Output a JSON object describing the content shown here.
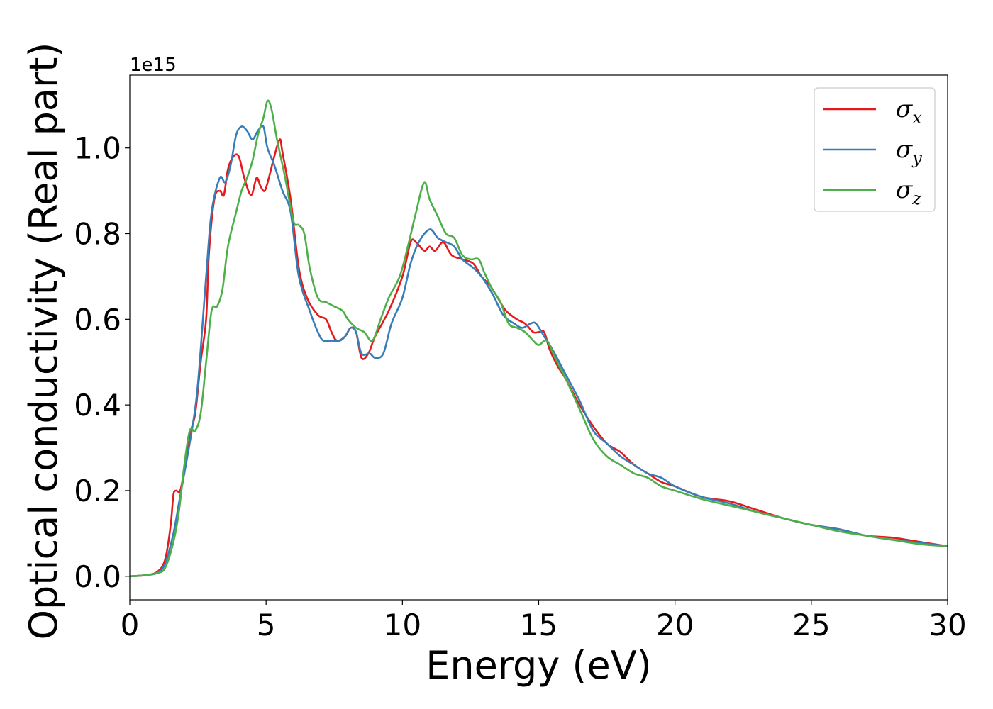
{
  "chart_data": {
    "type": "line",
    "title": "",
    "xlabel": "Energy (eV)",
    "ylabel": "Optical conductivity (Real part)",
    "y_offset_label": "1e15",
    "xlim": [
      0,
      30
    ],
    "ylim": [
      -0.055,
      1.17
    ],
    "xticks": [
      0,
      5,
      10,
      15,
      20,
      25,
      30
    ],
    "xtick_labels": [
      "0",
      "5",
      "10",
      "15",
      "20",
      "25",
      "30"
    ],
    "yticks": [
      0.0,
      0.2,
      0.4,
      0.6,
      0.8,
      1.0
    ],
    "ytick_labels": [
      "0.0",
      "0.2",
      "0.4",
      "0.6",
      "0.8",
      "1.0"
    ],
    "grid": false,
    "legend_position": "top-right",
    "series": [
      {
        "name": "σx",
        "symbol": "σ",
        "subscript": "x",
        "color": "#e41a1c",
        "points": [
          [
            0,
            0
          ],
          [
            0.5,
            0.002
          ],
          [
            1,
            0.01
          ],
          [
            1.3,
            0.04
          ],
          [
            1.5,
            0.12
          ],
          [
            1.6,
            0.19
          ],
          [
            1.7,
            0.2
          ],
          [
            1.85,
            0.2
          ],
          [
            2.0,
            0.25
          ],
          [
            2.2,
            0.33
          ],
          [
            2.4,
            0.38
          ],
          [
            2.6,
            0.5
          ],
          [
            2.8,
            0.6
          ],
          [
            2.9,
            0.75
          ],
          [
            3.1,
            0.88
          ],
          [
            3.3,
            0.9
          ],
          [
            3.45,
            0.89
          ],
          [
            3.6,
            0.95
          ],
          [
            3.8,
            0.98
          ],
          [
            4.0,
            0.98
          ],
          [
            4.2,
            0.93
          ],
          [
            4.45,
            0.89
          ],
          [
            4.65,
            0.93
          ],
          [
            4.8,
            0.91
          ],
          [
            4.95,
            0.9
          ],
          [
            5.1,
            0.93
          ],
          [
            5.3,
            0.98
          ],
          [
            5.5,
            1.02
          ],
          [
            5.6,
            0.99
          ],
          [
            5.9,
            0.88
          ],
          [
            6.2,
            0.72
          ],
          [
            6.5,
            0.65
          ],
          [
            6.9,
            0.61
          ],
          [
            7.2,
            0.6
          ],
          [
            7.4,
            0.57
          ],
          [
            7.6,
            0.55
          ],
          [
            7.9,
            0.56
          ],
          [
            8.1,
            0.58
          ],
          [
            8.3,
            0.57
          ],
          [
            8.5,
            0.51
          ],
          [
            8.75,
            0.52
          ],
          [
            9.0,
            0.56
          ],
          [
            9.5,
            0.62
          ],
          [
            10.0,
            0.7
          ],
          [
            10.3,
            0.78
          ],
          [
            10.5,
            0.78
          ],
          [
            10.8,
            0.76
          ],
          [
            11.0,
            0.77
          ],
          [
            11.2,
            0.76
          ],
          [
            11.5,
            0.78
          ],
          [
            11.8,
            0.75
          ],
          [
            12.2,
            0.74
          ],
          [
            12.6,
            0.73
          ],
          [
            12.9,
            0.7
          ],
          [
            13.2,
            0.68
          ],
          [
            13.5,
            0.65
          ],
          [
            13.8,
            0.62
          ],
          [
            14.2,
            0.6
          ],
          [
            14.5,
            0.59
          ],
          [
            14.8,
            0.57
          ],
          [
            15.0,
            0.57
          ],
          [
            15.2,
            0.57
          ],
          [
            15.4,
            0.53
          ],
          [
            15.7,
            0.49
          ],
          [
            16.0,
            0.46
          ],
          [
            16.5,
            0.4
          ],
          [
            17.0,
            0.35
          ],
          [
            17.5,
            0.31
          ],
          [
            18.0,
            0.29
          ],
          [
            18.5,
            0.26
          ],
          [
            19.0,
            0.24
          ],
          [
            19.5,
            0.22
          ],
          [
            20.0,
            0.21
          ],
          [
            21.0,
            0.185
          ],
          [
            22.0,
            0.175
          ],
          [
            23.0,
            0.155
          ],
          [
            24.0,
            0.135
          ],
          [
            25.0,
            0.12
          ],
          [
            26.0,
            0.11
          ],
          [
            27.0,
            0.095
          ],
          [
            28.0,
            0.09
          ],
          [
            29.0,
            0.08
          ],
          [
            30.0,
            0.07
          ]
        ]
      },
      {
        "name": "σy",
        "symbol": "σ",
        "subscript": "y",
        "color": "#377eb8",
        "points": [
          [
            0,
            0
          ],
          [
            0.5,
            0.002
          ],
          [
            1,
            0.008
          ],
          [
            1.3,
            0.03
          ],
          [
            1.6,
            0.1
          ],
          [
            1.8,
            0.17
          ],
          [
            2.0,
            0.24
          ],
          [
            2.3,
            0.35
          ],
          [
            2.5,
            0.45
          ],
          [
            2.8,
            0.7
          ],
          [
            3.0,
            0.85
          ],
          [
            3.3,
            0.93
          ],
          [
            3.5,
            0.92
          ],
          [
            3.7,
            0.96
          ],
          [
            3.9,
            1.03
          ],
          [
            4.1,
            1.05
          ],
          [
            4.3,
            1.04
          ],
          [
            4.5,
            1.02
          ],
          [
            4.7,
            1.04
          ],
          [
            4.9,
            1.05
          ],
          [
            5.05,
            1.0
          ],
          [
            5.3,
            0.96
          ],
          [
            5.6,
            0.9
          ],
          [
            5.9,
            0.85
          ],
          [
            6.2,
            0.7
          ],
          [
            6.6,
            0.62
          ],
          [
            6.9,
            0.57
          ],
          [
            7.1,
            0.55
          ],
          [
            7.4,
            0.55
          ],
          [
            7.7,
            0.55
          ],
          [
            7.9,
            0.56
          ],
          [
            8.1,
            0.58
          ],
          [
            8.3,
            0.57
          ],
          [
            8.5,
            0.52
          ],
          [
            8.8,
            0.52
          ],
          [
            9.0,
            0.51
          ],
          [
            9.3,
            0.52
          ],
          [
            9.6,
            0.59
          ],
          [
            10.0,
            0.65
          ],
          [
            10.3,
            0.73
          ],
          [
            10.6,
            0.78
          ],
          [
            11.0,
            0.81
          ],
          [
            11.3,
            0.79
          ],
          [
            11.6,
            0.78
          ],
          [
            11.9,
            0.77
          ],
          [
            12.2,
            0.74
          ],
          [
            12.6,
            0.72
          ],
          [
            12.9,
            0.7
          ],
          [
            13.3,
            0.66
          ],
          [
            13.7,
            0.61
          ],
          [
            14.1,
            0.59
          ],
          [
            14.4,
            0.58
          ],
          [
            14.7,
            0.59
          ],
          [
            14.9,
            0.59
          ],
          [
            15.2,
            0.56
          ],
          [
            15.5,
            0.53
          ],
          [
            16.0,
            0.47
          ],
          [
            16.5,
            0.41
          ],
          [
            17.0,
            0.34
          ],
          [
            17.5,
            0.31
          ],
          [
            18.0,
            0.28
          ],
          [
            18.5,
            0.26
          ],
          [
            19.0,
            0.24
          ],
          [
            19.5,
            0.23
          ],
          [
            20.0,
            0.21
          ],
          [
            21.0,
            0.185
          ],
          [
            22.0,
            0.17
          ],
          [
            23.0,
            0.15
          ],
          [
            24.0,
            0.135
          ],
          [
            25.0,
            0.12
          ],
          [
            26.0,
            0.11
          ],
          [
            27.0,
            0.095
          ],
          [
            28.0,
            0.085
          ],
          [
            29.0,
            0.078
          ],
          [
            30.0,
            0.07
          ]
        ]
      },
      {
        "name": "σz",
        "symbol": "σ",
        "subscript": "z",
        "color": "#4daf4a",
        "points": [
          [
            0,
            0
          ],
          [
            0.5,
            0.002
          ],
          [
            1,
            0.007
          ],
          [
            1.3,
            0.02
          ],
          [
            1.6,
            0.08
          ],
          [
            1.8,
            0.15
          ],
          [
            2.0,
            0.26
          ],
          [
            2.2,
            0.34
          ],
          [
            2.4,
            0.34
          ],
          [
            2.6,
            0.38
          ],
          [
            2.8,
            0.5
          ],
          [
            3.0,
            0.62
          ],
          [
            3.2,
            0.63
          ],
          [
            3.4,
            0.67
          ],
          [
            3.6,
            0.77
          ],
          [
            3.9,
            0.85
          ],
          [
            4.1,
            0.9
          ],
          [
            4.3,
            0.93
          ],
          [
            4.5,
            0.97
          ],
          [
            4.7,
            1.03
          ],
          [
            4.9,
            1.07
          ],
          [
            5.05,
            1.11
          ],
          [
            5.2,
            1.09
          ],
          [
            5.4,
            1.02
          ],
          [
            5.7,
            0.93
          ],
          [
            6.0,
            0.83
          ],
          [
            6.2,
            0.82
          ],
          [
            6.4,
            0.8
          ],
          [
            6.6,
            0.72
          ],
          [
            6.9,
            0.65
          ],
          [
            7.2,
            0.64
          ],
          [
            7.5,
            0.63
          ],
          [
            7.8,
            0.62
          ],
          [
            8.0,
            0.6
          ],
          [
            8.3,
            0.58
          ],
          [
            8.6,
            0.57
          ],
          [
            8.9,
            0.55
          ],
          [
            9.2,
            0.6
          ],
          [
            9.5,
            0.65
          ],
          [
            9.9,
            0.7
          ],
          [
            10.2,
            0.77
          ],
          [
            10.5,
            0.85
          ],
          [
            10.8,
            0.92
          ],
          [
            11.0,
            0.88
          ],
          [
            11.3,
            0.84
          ],
          [
            11.6,
            0.8
          ],
          [
            11.9,
            0.79
          ],
          [
            12.2,
            0.75
          ],
          [
            12.5,
            0.74
          ],
          [
            12.8,
            0.74
          ],
          [
            13.0,
            0.71
          ],
          [
            13.3,
            0.67
          ],
          [
            13.6,
            0.64
          ],
          [
            13.9,
            0.59
          ],
          [
            14.2,
            0.58
          ],
          [
            14.5,
            0.57
          ],
          [
            14.8,
            0.55
          ],
          [
            15.0,
            0.54
          ],
          [
            15.3,
            0.55
          ],
          [
            15.6,
            0.51
          ],
          [
            16.0,
            0.46
          ],
          [
            16.5,
            0.39
          ],
          [
            17.0,
            0.32
          ],
          [
            17.5,
            0.28
          ],
          [
            18.0,
            0.26
          ],
          [
            18.5,
            0.24
          ],
          [
            19.0,
            0.23
          ],
          [
            19.5,
            0.21
          ],
          [
            20.0,
            0.2
          ],
          [
            21.0,
            0.18
          ],
          [
            22.0,
            0.165
          ],
          [
            23.0,
            0.15
          ],
          [
            24.0,
            0.135
          ],
          [
            25.0,
            0.12
          ],
          [
            26.0,
            0.105
          ],
          [
            27.0,
            0.095
          ],
          [
            28.0,
            0.085
          ],
          [
            29.0,
            0.075
          ],
          [
            30.0,
            0.07
          ]
        ]
      }
    ]
  }
}
